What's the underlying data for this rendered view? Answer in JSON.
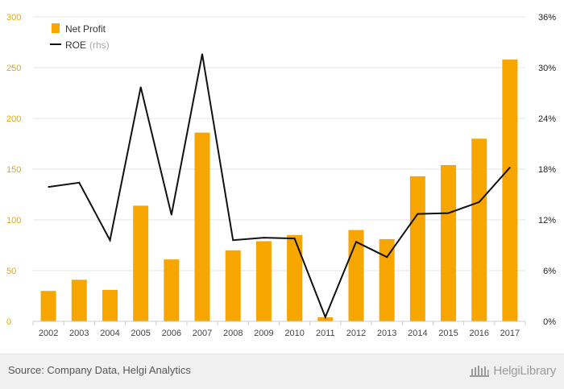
{
  "chart_data": {
    "type": "bar",
    "categories": [
      "2002",
      "2003",
      "2004",
      "2005",
      "2006",
      "2007",
      "2008",
      "2009",
      "2010",
      "2011",
      "2012",
      "2013",
      "2014",
      "2015",
      "2016",
      "2017"
    ],
    "series": [
      {
        "name": "Net Profit",
        "type": "bar",
        "axis": "left",
        "values": [
          30,
          41,
          31,
          114,
          61,
          186,
          70,
          79,
          85,
          4,
          90,
          81,
          143,
          154,
          180,
          258
        ]
      },
      {
        "name": "ROE",
        "legend_note": "(rhs)",
        "type": "line",
        "axis": "right",
        "values": [
          15.9,
          16.4,
          9.6,
          27.7,
          12.6,
          31.6,
          9.6,
          9.9,
          9.8,
          0.5,
          9.4,
          7.6,
          12.7,
          12.8,
          14.1,
          18.2
        ]
      }
    ],
    "ylim_left": [
      0,
      300
    ],
    "left_ticks": [
      "0",
      "50",
      "100",
      "150",
      "200",
      "250",
      "300"
    ],
    "ylim_right": [
      0,
      36
    ],
    "right_ticks": [
      "0%",
      "6%",
      "12%",
      "18%",
      "24%",
      "30%",
      "36%"
    ],
    "legend_position": "top-left",
    "grid": true,
    "colors": {
      "bar": "#f7a600",
      "line": "#111111",
      "grid": "#e6e6e6",
      "left_axis_text": "#e6a800"
    }
  },
  "footer": {
    "source": "Source: Company Data, Helgi Analytics",
    "brand": "HelgiLibrary"
  }
}
